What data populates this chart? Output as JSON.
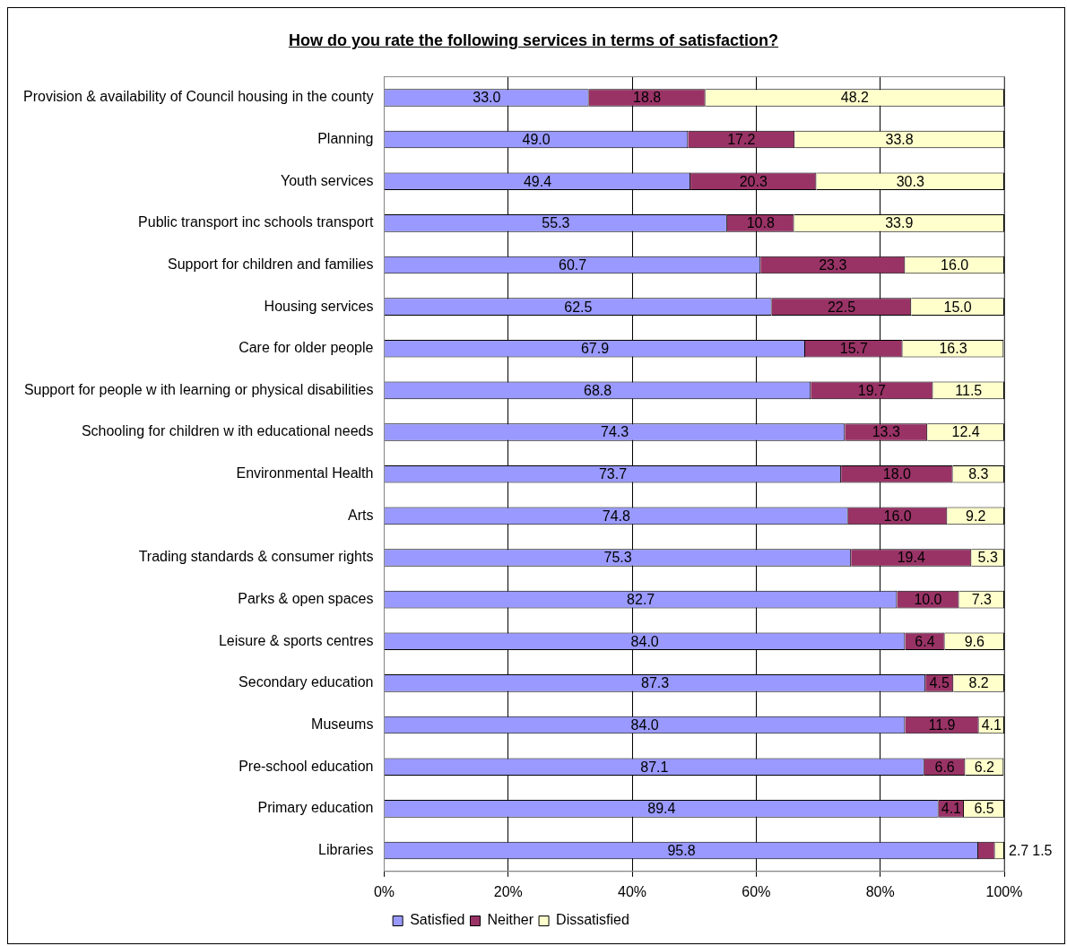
{
  "chart_data": {
    "type": "bar",
    "orientation": "horizontal",
    "stacked": true,
    "title": "How do you rate the following services in terms of satisfaction?",
    "categories": [
      "Provision & availability of Council housing in the county",
      "Planning",
      "Youth services",
      "Public transport inc schools transport",
      "Support for children and families",
      "Housing services",
      "Care for older people",
      "Support for people w ith learning or physical disabilities",
      "Schooling for children w ith educational needs",
      "Environmental Health",
      "Arts",
      "Trading standards & consumer rights",
      "Parks & open spaces",
      "Leisure & sports centres",
      "Secondary education",
      "Museums",
      "Pre-school education",
      "Primary education",
      "Libraries"
    ],
    "series": [
      {
        "name": "Satisfied",
        "color": "#9999ff",
        "values": [
          33.0,
          49.0,
          49.4,
          55.3,
          60.7,
          62.5,
          67.9,
          68.8,
          74.3,
          73.7,
          74.8,
          75.3,
          82.7,
          84.0,
          87.3,
          84.0,
          87.1,
          89.4,
          95.8
        ],
        "value_labels": [
          "33.0",
          "49.0",
          "49.4",
          "55.3",
          "60.7",
          "62.5",
          "67.9",
          "68.8",
          "74.3",
          "73.7",
          "74.8",
          "75.3",
          "82.7",
          "84.0",
          "87.3",
          "84.0",
          "87.1",
          "89.4",
          "95.8"
        ]
      },
      {
        "name": "Neither",
        "color": "#993366",
        "values": [
          18.8,
          17.2,
          20.3,
          10.8,
          23.3,
          22.5,
          15.7,
          19.7,
          13.3,
          18.0,
          16.0,
          19.4,
          10.0,
          6.4,
          4.5,
          11.9,
          6.6,
          4.1,
          2.7
        ],
        "value_labels": [
          "18.8",
          "17.2",
          "20.3",
          "10.8",
          "23.3",
          "22.5",
          "15.7",
          "19.7",
          "13.3",
          "18.0",
          "16.0",
          "19.4",
          "10.0",
          "6.4",
          "4.5",
          "11.9",
          "6.6",
          "4.1",
          "2.7"
        ]
      },
      {
        "name": "Dissatisfied",
        "color": "#ffffcc",
        "values": [
          48.2,
          33.8,
          30.3,
          33.9,
          16.0,
          15.0,
          16.3,
          11.5,
          12.4,
          8.3,
          9.2,
          5.3,
          7.3,
          9.6,
          8.2,
          4.1,
          6.2,
          6.5,
          1.5
        ],
        "value_labels": [
          "48.2",
          "33.8",
          "30.3",
          "33.9",
          "16.0",
          "15.0",
          "16.3",
          "11.5",
          "12.4",
          "8.3",
          "9.2",
          "5.3",
          "7.3",
          "9.6",
          "8.2",
          "4.1",
          "6.2",
          "6.5",
          "1.5"
        ]
      }
    ],
    "xlim": [
      0,
      100
    ],
    "xticks": [
      {
        "value": 0,
        "label": "0%"
      },
      {
        "value": 20,
        "label": "20%"
      },
      {
        "value": 40,
        "label": "40%"
      },
      {
        "value": 60,
        "label": "60%"
      },
      {
        "value": 80,
        "label": "80%"
      },
      {
        "value": 100,
        "label": "100%"
      }
    ],
    "grid": "x",
    "legend": "bottom"
  }
}
